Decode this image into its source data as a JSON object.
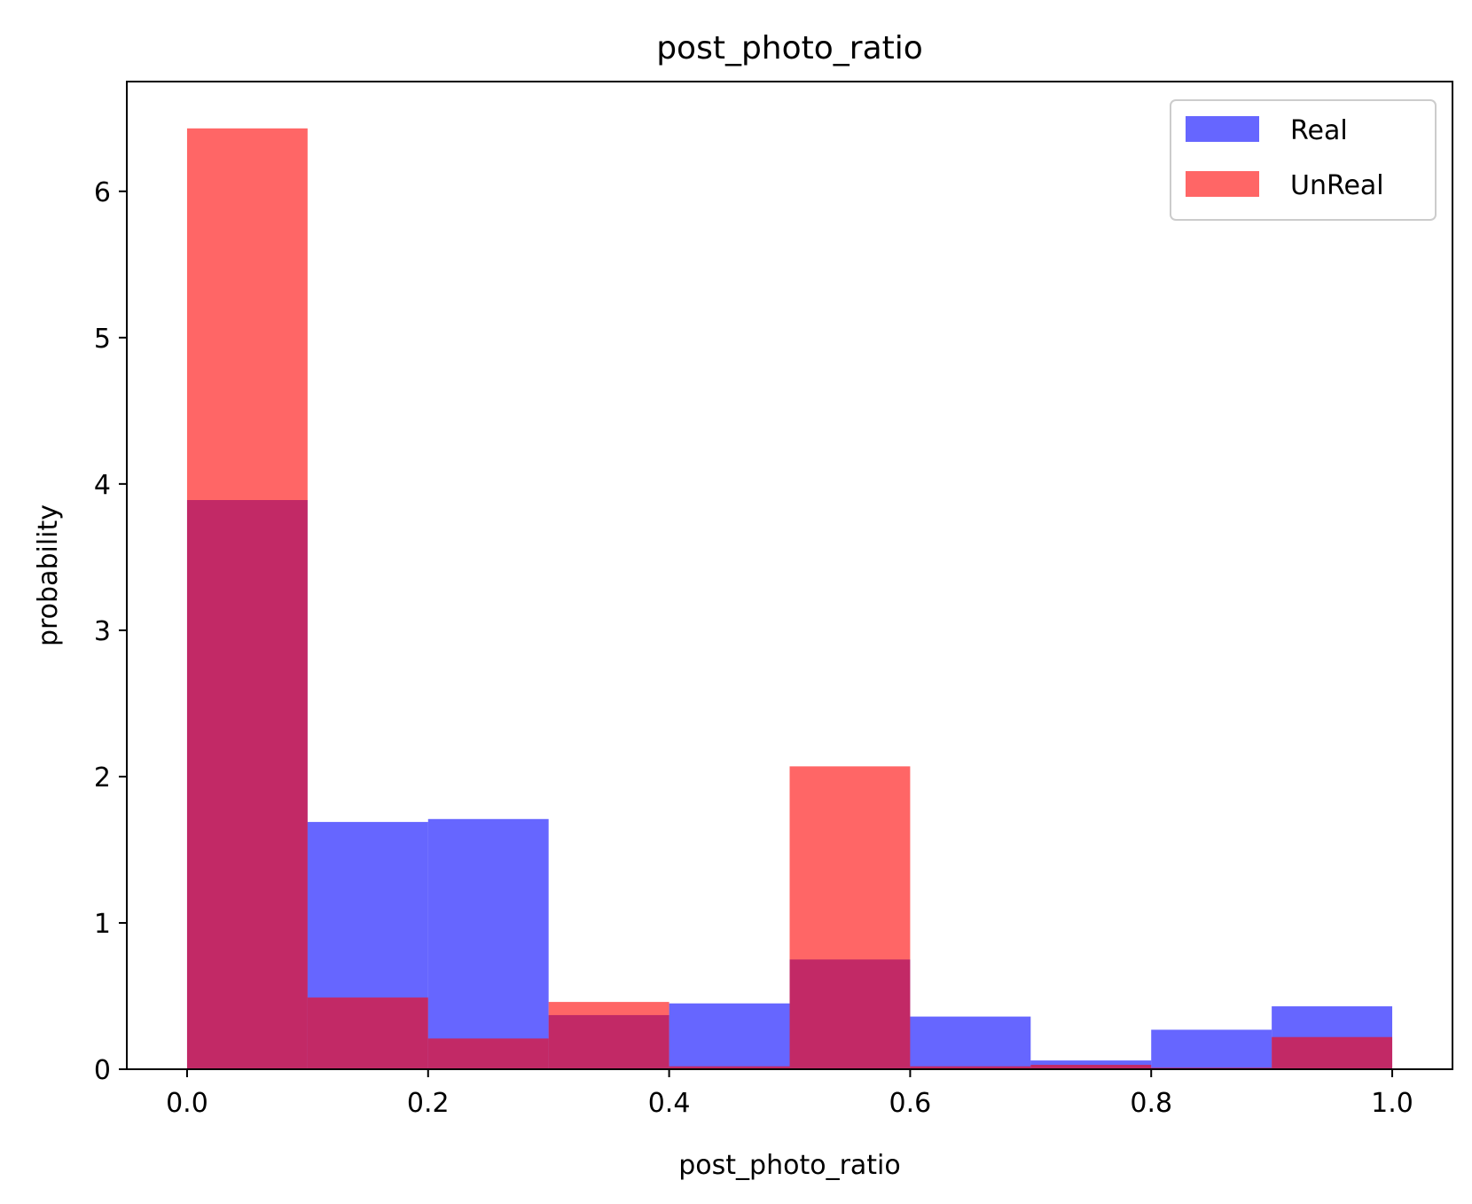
{
  "chart_data": {
    "type": "bar",
    "subtype": "overlapping-histogram",
    "title": "post_photo_ratio",
    "xlabel": "post_photo_ratio",
    "ylabel": "probability",
    "xlim": [
      -0.05,
      1.05
    ],
    "ylim": [
      0,
      6.75
    ],
    "bin_edges": [
      0.0,
      0.1,
      0.2,
      0.3,
      0.4,
      0.5,
      0.6,
      0.7,
      0.8,
      0.9,
      1.0
    ],
    "x_ticks": [
      "0.0",
      "0.2",
      "0.4",
      "0.6",
      "0.8",
      "1.0"
    ],
    "x_tick_values": [
      0.0,
      0.2,
      0.4,
      0.6,
      0.8,
      1.0
    ],
    "y_ticks": [
      "0",
      "1",
      "2",
      "3",
      "4",
      "5",
      "6"
    ],
    "y_tick_values": [
      0,
      1,
      2,
      3,
      4,
      5,
      6
    ],
    "grid": false,
    "legend_position": "top-right",
    "series": [
      {
        "name": "Real",
        "color": "#0000ff",
        "alpha": 0.6,
        "values": [
          3.89,
          1.69,
          1.71,
          0.37,
          0.45,
          0.75,
          0.36,
          0.06,
          0.27,
          0.43
        ]
      },
      {
        "name": "UnReal",
        "color": "#ff0000",
        "alpha": 0.6,
        "values": [
          6.43,
          0.49,
          0.21,
          0.46,
          0.02,
          2.07,
          0.02,
          0.03,
          0.01,
          0.22
        ]
      }
    ]
  }
}
